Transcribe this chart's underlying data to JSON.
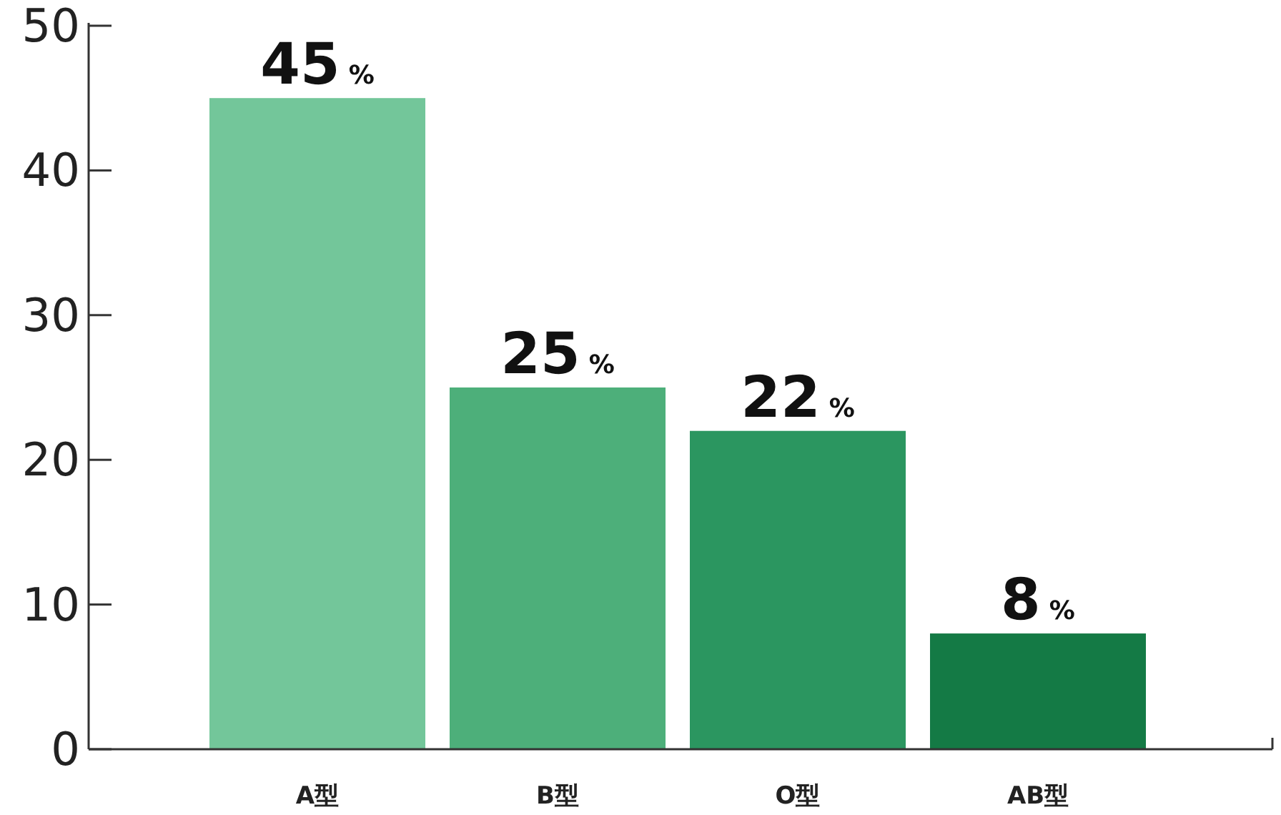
{
  "chart_data": {
    "type": "bar",
    "categories": [
      "A型",
      "B型",
      "O型",
      "AB型"
    ],
    "values": [
      45,
      25,
      22,
      8
    ],
    "colors": [
      "#73c69a",
      "#4daf7a",
      "#2b9660",
      "#147a45"
    ],
    "value_labels": [
      "45%",
      "25%",
      "22%",
      "8%"
    ],
    "ylim": [
      0,
      50
    ],
    "yticks": [
      0,
      10,
      20,
      30,
      40,
      50
    ],
    "grid": false
  }
}
